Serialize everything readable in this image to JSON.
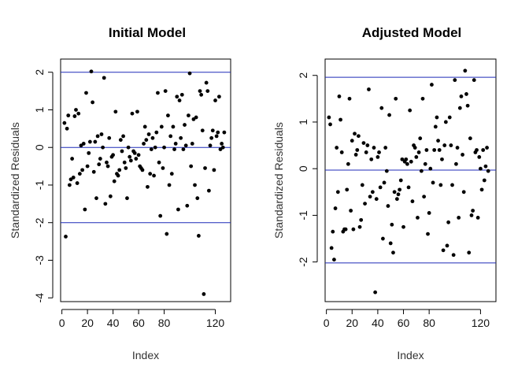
{
  "chart_data": [
    {
      "type": "scatter",
      "title": "Initial Model",
      "xlabel": "Index",
      "ylabel": "Standardized Residuals",
      "xlim": [
        -1,
        132
      ],
      "ylim": [
        -4.1,
        2.35
      ],
      "xticks": [
        0,
        20,
        40,
        60,
        80,
        120
      ],
      "xtick_labels": [
        "0",
        "20",
        "40",
        "60",
        "80",
        "120"
      ],
      "yticks": [
        -4,
        -3,
        -2,
        -1,
        0,
        1,
        2
      ],
      "ytick_labels": [
        "-4",
        "-3",
        "-2",
        "-1",
        "0",
        "1",
        "2"
      ],
      "hlines": [
        2,
        0,
        -2
      ],
      "hline_color": "#1f2bb8",
      "grid": false,
      "points": [
        [
          2,
          0.65
        ],
        [
          3,
          -2.37
        ],
        [
          4,
          0.5
        ],
        [
          5,
          0.85
        ],
        [
          6,
          -1.0
        ],
        [
          7,
          -0.85
        ],
        [
          8,
          -0.3
        ],
        [
          9,
          -0.8
        ],
        [
          10,
          0.83
        ],
        [
          11,
          1.0
        ],
        [
          12,
          -0.95
        ],
        [
          13,
          0.9
        ],
        [
          14,
          -0.7
        ],
        [
          15,
          0.05
        ],
        [
          16,
          -0.6
        ],
        [
          17,
          0.1
        ],
        [
          18,
          -1.65
        ],
        [
          19,
          1.45
        ],
        [
          20,
          -0.5
        ],
        [
          21,
          -0.15
        ],
        [
          22,
          0.15
        ],
        [
          23,
          2.02
        ],
        [
          24,
          1.2
        ],
        [
          25,
          -0.65
        ],
        [
          26,
          0.15
        ],
        [
          27,
          -1.35
        ],
        [
          28,
          0.3
        ],
        [
          29,
          -0.45
        ],
        [
          30,
          -0.3
        ],
        [
          31,
          0.35
        ],
        [
          32,
          0.0
        ],
        [
          33,
          1.85
        ],
        [
          34,
          -1.5
        ],
        [
          35,
          -0.4
        ],
        [
          36,
          -0.5
        ],
        [
          37,
          0.25
        ],
        [
          38,
          -1.3
        ],
        [
          39,
          -0.25
        ],
        [
          40,
          -0.2
        ],
        [
          41,
          -0.9
        ],
        [
          42,
          0.95
        ],
        [
          43,
          -0.7
        ],
        [
          44,
          -0.75
        ],
        [
          45,
          -0.6
        ],
        [
          46,
          0.2
        ],
        [
          47,
          -0.1
        ],
        [
          48,
          0.3
        ],
        [
          49,
          -0.4
        ],
        [
          50,
          -0.55
        ],
        [
          51,
          -1.35
        ],
        [
          52,
          0.0
        ],
        [
          53,
          -0.25
        ],
        [
          54,
          -0.35
        ],
        [
          55,
          0.9
        ],
        [
          56,
          -0.1
        ],
        [
          57,
          -0.15
        ],
        [
          58,
          -0.3
        ],
        [
          59,
          0.95
        ],
        [
          60,
          -0.2
        ],
        [
          61,
          -0.5
        ],
        [
          62,
          -0.55
        ],
        [
          63,
          -0.6
        ],
        [
          64,
          0.1
        ],
        [
          65,
          0.55
        ],
        [
          66,
          0.2
        ],
        [
          67,
          -1.05
        ],
        [
          68,
          0.35
        ],
        [
          69,
          -0.7
        ],
        [
          70,
          -0.05
        ],
        [
          71,
          0.25
        ],
        [
          72,
          -0.75
        ],
        [
          73,
          0.0
        ],
        [
          74,
          0.4
        ],
        [
          75,
          1.45
        ],
        [
          76,
          -0.4
        ],
        [
          77,
          -1.82
        ],
        [
          78,
          0.55
        ],
        [
          79,
          -0.55
        ],
        [
          80,
          0.0
        ],
        [
          81,
          1.5
        ],
        [
          82,
          -2.3
        ],
        [
          83,
          0.85
        ],
        [
          84,
          -1.0
        ],
        [
          85,
          0.3
        ],
        [
          86,
          -0.7
        ],
        [
          87,
          0.55
        ],
        [
          88,
          -0.05
        ],
        [
          89,
          0.1
        ],
        [
          90,
          1.35
        ],
        [
          91,
          -1.65
        ],
        [
          92,
          1.25
        ],
        [
          93,
          0.25
        ],
        [
          94,
          1.4
        ],
        [
          95,
          -0.05
        ],
        [
          96,
          0.6
        ],
        [
          97,
          0.05
        ],
        [
          98,
          -1.55
        ],
        [
          99,
          0.85
        ],
        [
          100,
          1.97
        ],
        [
          101,
          -0.5
        ],
        [
          102,
          0.1
        ],
        [
          103,
          0.75
        ],
        [
          104,
          -1.0
        ],
        [
          105,
          0.8
        ],
        [
          106,
          -1.35
        ],
        [
          107,
          -2.35
        ],
        [
          108,
          1.5
        ],
        [
          109,
          1.4
        ],
        [
          110,
          0.45
        ],
        [
          111,
          -3.9
        ],
        [
          112,
          -0.55
        ],
        [
          113,
          1.72
        ],
        [
          114,
          1.5
        ],
        [
          115,
          -1.15
        ],
        [
          116,
          0.05
        ],
        [
          117,
          0.25
        ],
        [
          118,
          0.45
        ],
        [
          119,
          -0.6
        ],
        [
          120,
          1.25
        ],
        [
          121,
          0.3
        ],
        [
          122,
          0.4
        ],
        [
          123,
          1.35
        ],
        [
          124,
          -0.05
        ],
        [
          125,
          0.1
        ],
        [
          126,
          0.0
        ],
        [
          127,
          0.4
        ]
      ]
    },
    {
      "type": "scatter",
      "title": "Adjusted Model",
      "xlabel": "Index",
      "ylabel": "Standardized Residuals",
      "xlim": [
        -1,
        132
      ],
      "ylim": [
        -2.85,
        2.35
      ],
      "xticks": [
        0,
        20,
        40,
        60,
        80,
        120
      ],
      "xtick_labels": [
        "0",
        "20",
        "40",
        "60",
        "80",
        "120"
      ],
      "yticks": [
        -2,
        -1,
        0,
        1,
        2
      ],
      "ytick_labels": [
        "-2",
        "-1",
        "0",
        "1",
        "2"
      ],
      "hlines": [
        1.96,
        -0.03,
        -2.02
      ],
      "hline_color": "#1f2bb8",
      "grid": false,
      "points": [
        [
          2,
          1.1
        ],
        [
          3,
          0.95
        ],
        [
          4,
          -1.7
        ],
        [
          5,
          -1.35
        ],
        [
          6,
          -1.95
        ],
        [
          7,
          -0.85
        ],
        [
          8,
          0.45
        ],
        [
          9,
          -0.5
        ],
        [
          10,
          1.55
        ],
        [
          11,
          1.05
        ],
        [
          12,
          0.35
        ],
        [
          13,
          -1.35
        ],
        [
          14,
          -1.3
        ],
        [
          15,
          -1.3
        ],
        [
          16,
          -0.45
        ],
        [
          17,
          0.1
        ],
        [
          18,
          1.5
        ],
        [
          19,
          -0.9
        ],
        [
          20,
          0.6
        ],
        [
          21,
          -1.3
        ],
        [
          22,
          0.75
        ],
        [
          23,
          0.3
        ],
        [
          24,
          0.4
        ],
        [
          25,
          0.7
        ],
        [
          26,
          -1.25
        ],
        [
          27,
          -1.1
        ],
        [
          28,
          -0.35
        ],
        [
          29,
          0.55
        ],
        [
          30,
          -0.75
        ],
        [
          31,
          0.35
        ],
        [
          32,
          0.5
        ],
        [
          33,
          1.7
        ],
        [
          34,
          -0.6
        ],
        [
          35,
          0.2
        ],
        [
          36,
          -0.5
        ],
        [
          37,
          0.45
        ],
        [
          38,
          -2.65
        ],
        [
          39,
          -0.65
        ],
        [
          40,
          0.25
        ],
        [
          41,
          0.35
        ],
        [
          42,
          -0.4
        ],
        [
          43,
          1.3
        ],
        [
          44,
          -1.5
        ],
        [
          45,
          -0.3
        ],
        [
          46,
          0.45
        ],
        [
          47,
          -0.05
        ],
        [
          48,
          -0.8
        ],
        [
          49,
          1.15
        ],
        [
          50,
          -1.6
        ],
        [
          51,
          -1.2
        ],
        [
          52,
          -1.8
        ],
        [
          53,
          -0.5
        ],
        [
          54,
          1.5
        ],
        [
          55,
          -0.65
        ],
        [
          56,
          -0.55
        ],
        [
          57,
          -0.45
        ],
        [
          58,
          -0.25
        ],
        [
          59,
          0.2
        ],
        [
          60,
          -1.25
        ],
        [
          61,
          0.15
        ],
        [
          62,
          0.2
        ],
        [
          63,
          0.1
        ],
        [
          64,
          -0.4
        ],
        [
          65,
          1.25
        ],
        [
          66,
          0.15
        ],
        [
          67,
          -0.7
        ],
        [
          68,
          0.5
        ],
        [
          69,
          0.45
        ],
        [
          70,
          0.25
        ],
        [
          71,
          -1.05
        ],
        [
          72,
          0.35
        ],
        [
          73,
          0.65
        ],
        [
          74,
          -0.05
        ],
        [
          75,
          1.5
        ],
        [
          76,
          -0.6
        ],
        [
          77,
          0.1
        ],
        [
          78,
          0.4
        ],
        [
          79,
          -1.4
        ],
        [
          80,
          -0.95
        ],
        [
          81,
          0.0
        ],
        [
          82,
          1.8
        ],
        [
          83,
          -0.3
        ],
        [
          84,
          0.4
        ],
        [
          85,
          0.9
        ],
        [
          86,
          1.1
        ],
        [
          87,
          0.6
        ],
        [
          88,
          0.4
        ],
        [
          89,
          -0.35
        ],
        [
          90,
          0.2
        ],
        [
          91,
          -1.75
        ],
        [
          92,
          0.5
        ],
        [
          93,
          1.0
        ],
        [
          94,
          -1.65
        ],
        [
          95,
          -1.15
        ],
        [
          96,
          1.1
        ],
        [
          97,
          0.5
        ],
        [
          98,
          -0.35
        ],
        [
          99,
          -1.85
        ],
        [
          100,
          1.9
        ],
        [
          101,
          0.1
        ],
        [
          102,
          0.45
        ],
        [
          103,
          -1.05
        ],
        [
          104,
          1.3
        ],
        [
          105,
          1.55
        ],
        [
          106,
          0.3
        ],
        [
          107,
          -0.5
        ],
        [
          108,
          2.1
        ],
        [
          109,
          1.6
        ],
        [
          110,
          1.35
        ],
        [
          111,
          -1.8
        ],
        [
          112,
          0.65
        ],
        [
          113,
          -1.0
        ],
        [
          114,
          -0.9
        ],
        [
          115,
          1.9
        ],
        [
          116,
          0.35
        ],
        [
          117,
          0.4
        ],
        [
          118,
          -1.05
        ],
        [
          119,
          0.25
        ],
        [
          120,
          0.0
        ],
        [
          121,
          -0.45
        ],
        [
          122,
          0.4
        ],
        [
          123,
          -0.25
        ],
        [
          124,
          0.05
        ],
        [
          125,
          0.45
        ],
        [
          126,
          -0.05
        ]
      ]
    }
  ]
}
